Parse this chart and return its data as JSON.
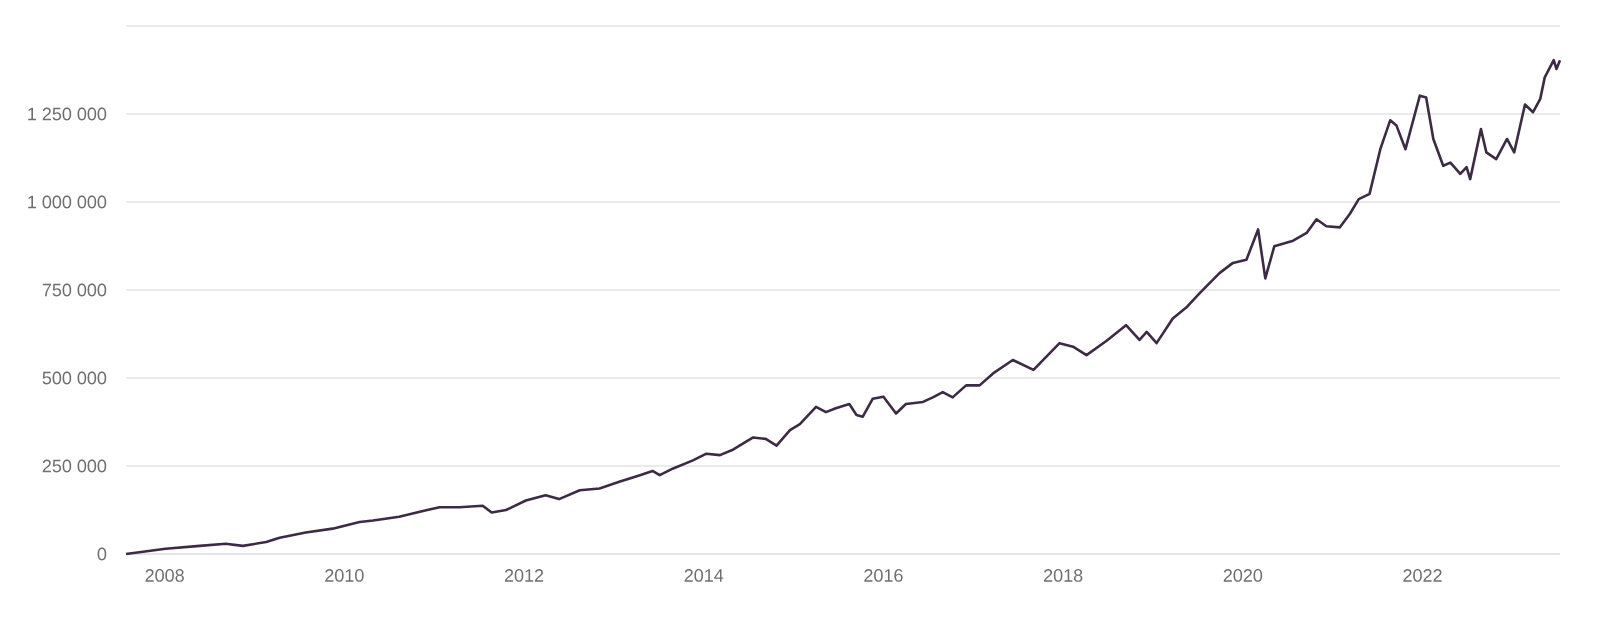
{
  "chart_data": {
    "type": "line",
    "grid": "y",
    "marker": "none",
    "line_style": "solid",
    "xlim": [
      2007.57,
      2023.53
    ],
    "xticks": [
      2008,
      2010,
      2012,
      2014,
      2016,
      2018,
      2020,
      2022
    ],
    "ylim": [
      0,
      1500000
    ],
    "yticks": [
      {
        "value": 0,
        "label": "0"
      },
      {
        "value": 250000,
        "label": "250 000"
      },
      {
        "value": 500000,
        "label": "500 000"
      },
      {
        "value": 750000,
        "label": "750 000"
      },
      {
        "value": 1000000,
        "label": "1 000 000"
      },
      {
        "value": 1250000,
        "label": "1 250 000"
      },
      {
        "value": 1500000,
        "label": null
      }
    ],
    "x": [
      2007.57,
      2008.01,
      2008.39,
      2008.68,
      2008.87,
      2009.13,
      2009.28,
      2009.57,
      2009.87,
      2010.17,
      2010.32,
      2010.61,
      2010.91,
      2011.06,
      2011.28,
      2011.54,
      2011.64,
      2011.8,
      2012.02,
      2012.24,
      2012.39,
      2012.62,
      2012.84,
      2013.06,
      2013.29,
      2013.43,
      2013.51,
      2013.66,
      2013.88,
      2014.03,
      2014.18,
      2014.33,
      2014.55,
      2014.69,
      2014.81,
      2014.96,
      2015.07,
      2015.25,
      2015.36,
      2015.47,
      2015.62,
      2015.7,
      2015.77,
      2015.88,
      2016.0,
      2016.14,
      2016.25,
      2016.44,
      2016.55,
      2016.66,
      2016.77,
      2016.92,
      2017.07,
      2017.22,
      2017.44,
      2017.67,
      2017.96,
      2018.11,
      2018.26,
      2018.48,
      2018.7,
      2018.85,
      2018.93,
      2019.04,
      2019.22,
      2019.37,
      2019.52,
      2019.74,
      2019.89,
      2020.04,
      2020.17,
      2020.25,
      2020.35,
      2020.56,
      2020.71,
      2020.82,
      2020.93,
      2021.08,
      2021.19,
      2021.29,
      2021.41,
      2021.53,
      2021.64,
      2021.71,
      2021.81,
      2021.9,
      2021.97,
      2022.04,
      2022.12,
      2022.23,
      2022.31,
      2022.42,
      2022.49,
      2022.53,
      2022.65,
      2022.71,
      2022.82,
      2022.94,
      2023.02,
      2023.14,
      2023.23,
      2023.31,
      2023.36,
      2023.46,
      2023.49,
      2023.53
    ],
    "series": [
      {
        "color": "#3d2a45",
        "values": [
          0,
          15000,
          23000,
          29000,
          23000,
          34000,
          46000,
          61000,
          72000,
          91000,
          95000,
          106000,
          124000,
          133000,
          133000,
          137000,
          118000,
          125000,
          152000,
          167000,
          156000,
          181000,
          186000,
          205000,
          224000,
          236000,
          224000,
          243000,
          266000,
          285000,
          281000,
          297000,
          331000,
          327000,
          308000,
          352000,
          369000,
          418000,
          403000,
          414000,
          426000,
          395000,
          390000,
          441000,
          447000,
          399000,
          426000,
          432000,
          445000,
          460000,
          445000,
          479000,
          479000,
          513000,
          551000,
          523000,
          599000,
          589000,
          565000,
          605000,
          650000,
          608000,
          631000,
          599000,
          669000,
          700000,
          741000,
          798000,
          827000,
          836000,
          922000,
          783000,
          874000,
          890000,
          912000,
          951000,
          931000,
          928000,
          966000,
          1008000,
          1023000,
          1150000,
          1232000,
          1217000,
          1150000,
          1236000,
          1302000,
          1297000,
          1179000,
          1103000,
          1112000,
          1080000,
          1099000,
          1065000,
          1207000,
          1141000,
          1122000,
          1179000,
          1141000,
          1277000,
          1255000,
          1293000,
          1354000,
          1403000,
          1378000,
          1403000
        ]
      }
    ]
  }
}
